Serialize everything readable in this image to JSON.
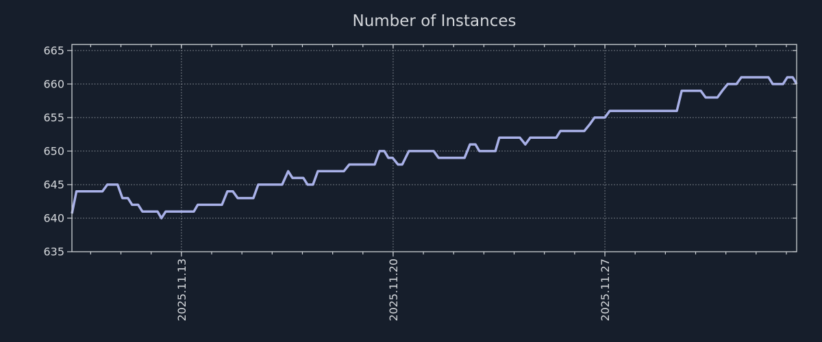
{
  "window": {
    "background_color": "#161e2b",
    "text_color": "#d4d7db",
    "frame_color": "#cfd3d7",
    "grid_color": "#aab0b6"
  },
  "chart_data": {
    "type": "line",
    "title": "Number of Instances",
    "xlabel": "",
    "ylabel": "",
    "legend": null,
    "grid": {
      "which": "major",
      "style": "dotted"
    },
    "x_axis": {
      "kind": "date",
      "reference_label": "2025.11.13",
      "xlim_days": [
        -3.62,
        20.34
      ],
      "major_ticks": [
        {
          "day": 0,
          "label": "2025.11.13"
        },
        {
          "day": 7,
          "label": "2025.11.20"
        },
        {
          "day": 14,
          "label": "2025.11.27"
        }
      ],
      "minor_tick_days": [
        -3,
        -2,
        -1,
        0,
        1,
        2,
        3,
        4,
        5,
        6,
        7,
        8,
        9,
        10,
        11,
        12,
        13,
        14,
        15,
        16,
        17,
        18,
        19,
        20
      ]
    },
    "y_axis": {
      "ylim": [
        635,
        665.9
      ],
      "ticks": [
        635,
        640,
        645,
        650,
        655,
        660,
        665
      ]
    },
    "series": [
      {
        "name": "Number of Instances",
        "color": "#a9b1e8",
        "points": [
          [
            -3.62,
            640.7
          ],
          [
            -3.47,
            644
          ],
          [
            -2.61,
            644
          ],
          [
            -2.45,
            645
          ],
          [
            -2.11,
            645
          ],
          [
            -1.95,
            643
          ],
          [
            -1.77,
            643
          ],
          [
            -1.63,
            642
          ],
          [
            -1.43,
            642
          ],
          [
            -1.29,
            641
          ],
          [
            -0.79,
            641
          ],
          [
            -0.66,
            640
          ],
          [
            -0.52,
            641
          ],
          [
            0.41,
            641
          ],
          [
            0.54,
            642
          ],
          [
            1.34,
            642
          ],
          [
            1.52,
            644
          ],
          [
            1.7,
            644
          ],
          [
            1.86,
            643
          ],
          [
            2.38,
            643
          ],
          [
            2.54,
            645
          ],
          [
            3.33,
            645
          ],
          [
            3.53,
            647
          ],
          [
            3.67,
            646
          ],
          [
            4.03,
            646
          ],
          [
            4.17,
            645
          ],
          [
            4.35,
            645
          ],
          [
            4.51,
            647
          ],
          [
            5.37,
            647
          ],
          [
            5.55,
            648
          ],
          [
            6.39,
            648
          ],
          [
            6.55,
            650
          ],
          [
            6.71,
            650
          ],
          [
            6.84,
            649
          ],
          [
            6.98,
            649
          ],
          [
            7.16,
            648
          ],
          [
            7.3,
            648
          ],
          [
            7.52,
            650
          ],
          [
            8.34,
            650
          ],
          [
            8.5,
            649
          ],
          [
            9.36,
            649
          ],
          [
            9.54,
            651
          ],
          [
            9.72,
            651
          ],
          [
            9.85,
            650
          ],
          [
            10.38,
            650
          ],
          [
            10.51,
            652
          ],
          [
            11.19,
            652
          ],
          [
            11.37,
            651
          ],
          [
            11.53,
            652
          ],
          [
            12.39,
            652
          ],
          [
            12.53,
            653
          ],
          [
            13.32,
            653
          ],
          [
            13.5,
            654
          ],
          [
            13.66,
            655
          ],
          [
            14.0,
            655
          ],
          [
            14.16,
            656
          ],
          [
            16.38,
            656
          ],
          [
            16.54,
            659
          ],
          [
            17.17,
            659
          ],
          [
            17.33,
            658
          ],
          [
            17.72,
            658
          ],
          [
            17.88,
            659
          ],
          [
            18.06,
            660
          ],
          [
            18.35,
            660
          ],
          [
            18.51,
            661
          ],
          [
            19.41,
            661
          ],
          [
            19.55,
            660
          ],
          [
            19.89,
            660
          ],
          [
            20.03,
            661
          ],
          [
            20.21,
            661
          ],
          [
            20.34,
            660
          ]
        ]
      }
    ]
  }
}
